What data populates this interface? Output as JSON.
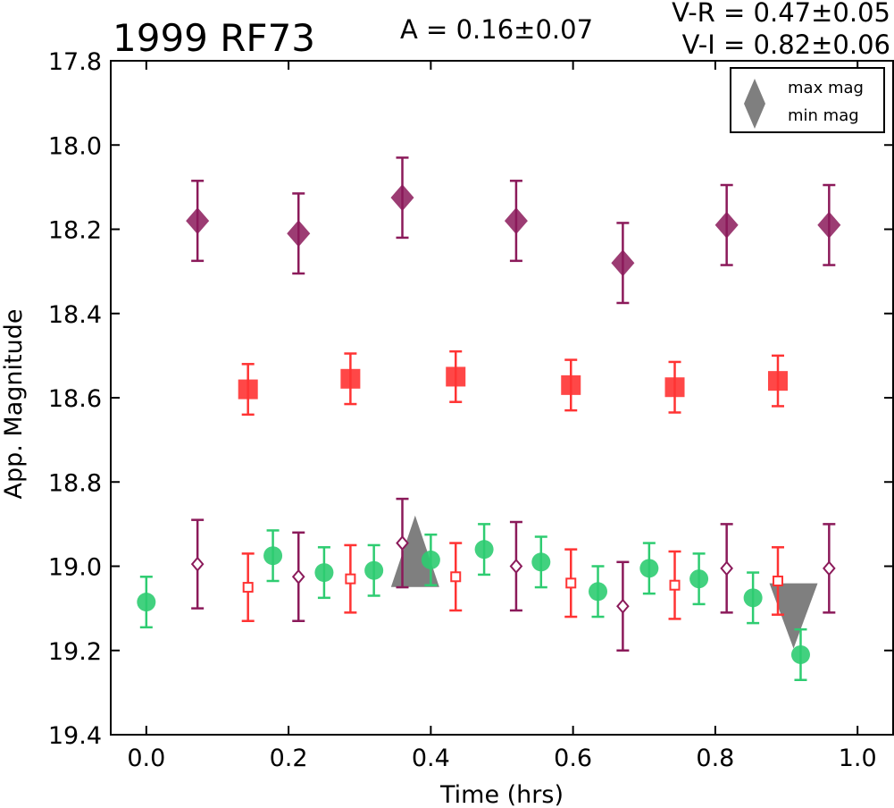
{
  "chart_data": {
    "type": "scatter",
    "title": "1999 RF73",
    "annotations": {
      "amplitude": "A  = 0.16±0.07",
      "v_r": "V-R = 0.47±0.05",
      "v_i": "V-I  = 0.82±0.06"
    },
    "xlabel": "Time (hrs)",
    "ylabel": "App. Magnitude",
    "xlim": [
      -0.05,
      1.05
    ],
    "ylim": [
      19.4,
      17.8
    ],
    "y_inverted": true,
    "xticks": [
      "0.0",
      "0.2",
      "0.4",
      "0.6",
      "0.8",
      "1.0"
    ],
    "yticks": [
      "17.8",
      "18.0",
      "18.2",
      "18.4",
      "18.6",
      "18.8",
      "19.0",
      "19.2",
      "19.4"
    ],
    "grid": false,
    "legend_placement": "top-right",
    "legend": [
      {
        "label": "max mag",
        "marker": "triangle-up",
        "color": "#7f7f7f"
      },
      {
        "label": "min mag",
        "marker": "triangle-down",
        "color": "#7f7f7f"
      }
    ],
    "series": [
      {
        "marker": "diamond-filled",
        "color": "#8b1a5a",
        "err": 0.095,
        "points": [
          [
            0.072,
            18.18
          ],
          [
            0.214,
            18.21
          ],
          [
            0.36,
            18.125
          ],
          [
            0.52,
            18.18
          ],
          [
            0.67,
            18.28
          ],
          [
            0.816,
            18.19
          ],
          [
            0.96,
            18.19
          ]
        ]
      },
      {
        "marker": "square-filled",
        "color": "#ff3333",
        "err": 0.06,
        "points": [
          [
            0.143,
            18.58
          ],
          [
            0.287,
            18.555
          ],
          [
            0.435,
            18.55
          ],
          [
            0.597,
            18.57
          ],
          [
            0.743,
            18.575
          ],
          [
            0.888,
            18.56
          ]
        ]
      },
      {
        "marker": "circle-filled",
        "color": "#2ecc71",
        "err": 0.06,
        "points": [
          [
            0.0,
            19.085
          ],
          [
            0.178,
            18.975
          ],
          [
            0.25,
            19.015
          ],
          [
            0.32,
            19.01
          ],
          [
            0.4,
            18.985
          ],
          [
            0.475,
            18.96
          ],
          [
            0.555,
            18.99
          ],
          [
            0.635,
            19.06
          ],
          [
            0.707,
            19.005
          ],
          [
            0.777,
            19.03
          ],
          [
            0.853,
            19.075
          ],
          [
            0.92,
            19.21
          ]
        ]
      },
      {
        "marker": "diamond-open",
        "color": "#8b1a5a",
        "err": 0.105,
        "points": [
          [
            0.072,
            18.995
          ],
          [
            0.214,
            19.025
          ],
          [
            0.36,
            18.945
          ],
          [
            0.52,
            19.0
          ],
          [
            0.67,
            19.095
          ],
          [
            0.816,
            19.005
          ],
          [
            0.96,
            19.005
          ]
        ]
      },
      {
        "marker": "square-open",
        "color": "#ff3333",
        "err": 0.08,
        "points": [
          [
            0.143,
            19.05
          ],
          [
            0.287,
            19.03
          ],
          [
            0.435,
            19.025
          ],
          [
            0.597,
            19.04
          ],
          [
            0.743,
            19.045
          ],
          [
            0.888,
            19.035
          ]
        ]
      }
    ],
    "extrema": [
      {
        "label": "max mag",
        "x": 0.378,
        "y": 18.975
      },
      {
        "label": "min mag",
        "x": 0.91,
        "y": 19.1
      }
    ]
  }
}
